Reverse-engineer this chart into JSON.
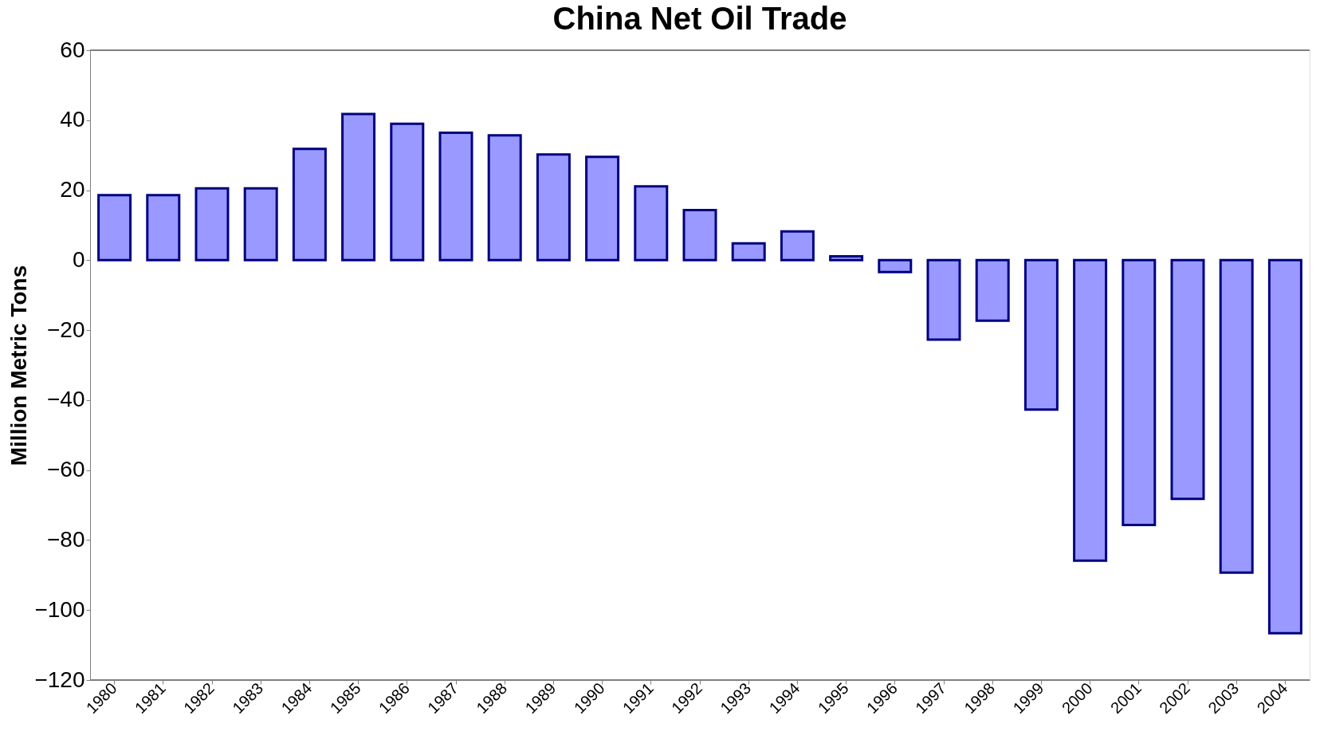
{
  "chart_data": {
    "type": "bar",
    "title": "China Net Oil Trade",
    "ylabel": "Million Metric Tons",
    "categories": [
      "1980",
      "1981",
      "1982",
      "1983",
      "1984",
      "1985",
      "1986",
      "1987",
      "1988",
      "1989",
      "1990",
      "1991",
      "1992",
      "1993",
      "1994",
      "1995",
      "1996",
      "1997",
      "1998",
      "1999",
      "2000",
      "2001",
      "2002",
      "2003",
      "2004"
    ],
    "values": [
      18.6,
      18.6,
      20.5,
      20.5,
      31.8,
      41.8,
      39.0,
      36.4,
      35.7,
      30.2,
      29.5,
      21.1,
      14.3,
      4.8,
      8.2,
      1.1,
      -3.4,
      -22.7,
      -17.3,
      -42.7,
      -85.9,
      -75.7,
      -68.2,
      -89.3,
      -106.6
    ],
    "color": "#9999ff",
    "ylim": [
      -120,
      60
    ],
    "yticks": [
      -120,
      -100,
      -80,
      -60,
      -40,
      -20,
      0,
      20,
      40,
      60
    ],
    "grid": false
  }
}
